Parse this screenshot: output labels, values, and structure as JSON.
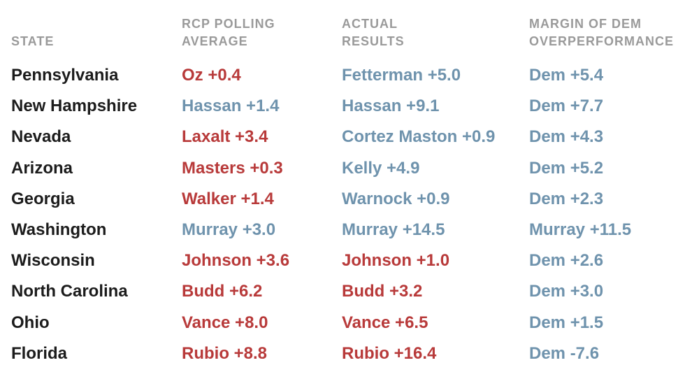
{
  "chart_data": {
    "type": "table",
    "columns": [
      "STATE",
      "RCP POLLING\nAVERAGE",
      "ACTUAL\nRESULTS",
      "MARGIN OF DEM\nOVERPERFORMANCE"
    ],
    "rows": [
      {
        "state": "Pennsylvania",
        "polling": "Oz +0.4",
        "polling_party": "rep",
        "actual": "Fetterman +5.0",
        "actual_party": "dem",
        "margin": "Dem +5.4",
        "margin_party": "dem"
      },
      {
        "state": "New Hampshire",
        "polling": "Hassan +1.4",
        "polling_party": "dem",
        "actual": "Hassan +9.1",
        "actual_party": "dem",
        "margin": "Dem +7.7",
        "margin_party": "dem"
      },
      {
        "state": "Nevada",
        "polling": "Laxalt +3.4",
        "polling_party": "rep",
        "actual": "Cortez Maston +0.9",
        "actual_party": "dem",
        "margin": "Dem +4.3",
        "margin_party": "dem"
      },
      {
        "state": "Arizona",
        "polling": "Masters +0.3",
        "polling_party": "rep",
        "actual": "Kelly +4.9",
        "actual_party": "dem",
        "margin": "Dem +5.2",
        "margin_party": "dem"
      },
      {
        "state": "Georgia",
        "polling": "Walker +1.4",
        "polling_party": "rep",
        "actual": "Warnock +0.9",
        "actual_party": "dem",
        "margin": "Dem +2.3",
        "margin_party": "dem"
      },
      {
        "state": "Washington",
        "polling": "Murray +3.0",
        "polling_party": "dem",
        "actual": "Murray +14.5",
        "actual_party": "dem",
        "margin": "Murray +11.5",
        "margin_party": "dem"
      },
      {
        "state": "Wisconsin",
        "polling": "Johnson +3.6",
        "polling_party": "rep",
        "actual": "Johnson +1.0",
        "actual_party": "rep",
        "margin": "Dem +2.6",
        "margin_party": "dem"
      },
      {
        "state": "North Carolina",
        "polling": "Budd +6.2",
        "polling_party": "rep",
        "actual": "Budd +3.2",
        "actual_party": "rep",
        "margin": "Dem +3.0",
        "margin_party": "dem"
      },
      {
        "state": "Ohio",
        "polling": "Vance +8.0",
        "polling_party": "rep",
        "actual": "Vance +6.5",
        "actual_party": "rep",
        "margin": "Dem +1.5",
        "margin_party": "dem"
      },
      {
        "state": "Florida",
        "polling": "Rubio +8.8",
        "polling_party": "rep",
        "actual": "Rubio +16.4",
        "actual_party": "rep",
        "margin": "Dem -7.6",
        "margin_party": "dem"
      }
    ],
    "colors": {
      "rep": "#b83a3a",
      "dem": "#6f93ad",
      "state": "#1c1c1c",
      "header": "#9a9a9a"
    }
  }
}
